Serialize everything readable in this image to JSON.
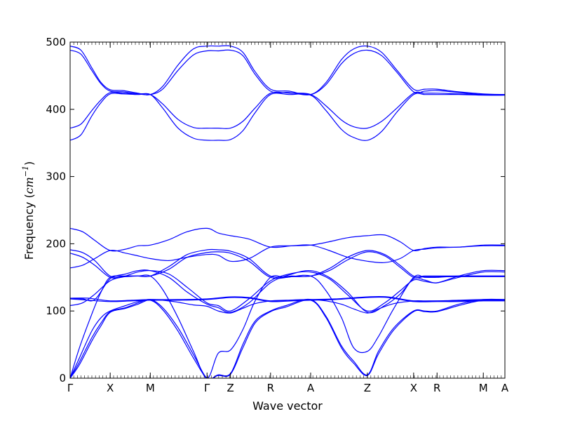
{
  "chart_data": {
    "type": "line",
    "title": "",
    "xlabel": "Wave vector",
    "ylabel_text": "Frequency (",
    "ylabel_math": "cm",
    "ylabel_exp": "−1",
    "ylabel_close": ")",
    "ylim": [
      0,
      500
    ],
    "xlim": [
      0,
      14.1
    ],
    "grid": false,
    "legend": "none",
    "line_color": "#0000ff",
    "yticks": [
      0,
      100,
      200,
      300,
      400,
      500
    ],
    "yticks_labels": [
      "0",
      "100",
      "200",
      "300",
      "400",
      "500"
    ],
    "high_points": [
      {
        "label": "Γ",
        "x": 0
      },
      {
        "label": "X",
        "x": 1.3
      },
      {
        "label": "M",
        "x": 2.6
      },
      {
        "label": "Γ",
        "x": 4.44
      },
      {
        "label": "Z",
        "x": 5.2
      },
      {
        "label": "R",
        "x": 6.5
      },
      {
        "label": "A",
        "x": 7.8
      },
      {
        "label": "Z",
        "x": 9.64
      },
      {
        "label": "X",
        "x": 11.14
      },
      {
        "label": "R",
        "x": 11.9
      },
      {
        "label": "M",
        "x": 13.4
      },
      {
        "label": "A",
        "x": 14.1
      }
    ],
    "series": [
      {
        "x": [
          0,
          0.35,
          0.7,
          1.0,
          1.3,
          1.7,
          2.2,
          2.6,
          3.0,
          3.5,
          4.0,
          4.44,
          4.8,
          5.2,
          5.6,
          6.0,
          6.5,
          7.1,
          7.8,
          8.3,
          8.8,
          9.2,
          9.64,
          10.1,
          10.6,
          11.14,
          11.5,
          11.9,
          12.6,
          13.4,
          14.1
        ],
        "values": [
          494,
          488,
          462,
          440,
          429,
          428,
          424,
          422,
          434,
          466,
          490,
          494,
          494,
          494,
          485,
          456,
          430,
          427,
          422,
          440,
          474,
          490,
          494,
          485,
          458,
          430,
          430,
          430,
          426,
          423,
          422
        ]
      },
      {
        "x": [
          0,
          0.35,
          0.7,
          1.0,
          1.3,
          1.7,
          2.2,
          2.6,
          3.0,
          3.5,
          4.0,
          4.44,
          4.8,
          5.2,
          5.6,
          6.0,
          6.5,
          7.1,
          7.8,
          8.3,
          8.8,
          9.2,
          9.64,
          10.1,
          10.6,
          11.14,
          11.5,
          11.9,
          12.6,
          13.4,
          14.1
        ],
        "values": [
          488,
          482,
          458,
          438,
          427,
          426,
          423,
          422,
          430,
          458,
          481,
          487,
          487,
          488,
          480,
          452,
          427,
          425,
          422,
          437,
          468,
          483,
          488,
          480,
          455,
          426,
          427,
          428,
          425,
          422,
          422
        ]
      },
      {
        "x": [
          0,
          0.35,
          0.7,
          1.0,
          1.3,
          1.7,
          2.2,
          2.6,
          3.0,
          3.5,
          4.0,
          4.44,
          4.8,
          5.2,
          5.6,
          6.0,
          6.5,
          7.1,
          7.8,
          8.3,
          8.8,
          9.2,
          9.64,
          10.1,
          10.6,
          11.14,
          11.5,
          11.9,
          12.6,
          13.4,
          14.1
        ],
        "values": [
          372,
          378,
          398,
          414,
          425,
          424,
          423,
          422,
          408,
          385,
          373,
          372,
          372,
          372,
          382,
          402,
          424,
          424,
          422,
          405,
          384,
          374,
          372,
          382,
          402,
          424,
          424,
          424,
          423,
          422,
          422
        ]
      },
      {
        "x": [
          0,
          0.35,
          0.7,
          1.0,
          1.3,
          1.7,
          2.2,
          2.6,
          3.0,
          3.5,
          4.0,
          4.44,
          4.8,
          5.2,
          5.6,
          6.0,
          6.5,
          7.1,
          7.8,
          8.3,
          8.8,
          9.2,
          9.64,
          10.1,
          10.6,
          11.14,
          11.5,
          11.9,
          12.6,
          13.4,
          14.1
        ],
        "values": [
          354,
          362,
          390,
          410,
          423,
          423,
          422,
          422,
          402,
          372,
          357,
          354,
          354,
          355,
          368,
          395,
          422,
          422,
          421,
          398,
          370,
          358,
          354,
          367,
          396,
          422,
          422,
          422,
          422,
          421,
          421
        ]
      },
      {
        "x": [
          0,
          0.4,
          0.8,
          1.3,
          1.8,
          2.2,
          2.6,
          3.2,
          3.8,
          4.44,
          4.8,
          5.2,
          5.8,
          6.5,
          7.2,
          7.8,
          8.4,
          9.0,
          9.64,
          10.2,
          10.7,
          11.14,
          11.5,
          11.9,
          12.6,
          13.4,
          14.1
        ],
        "values": [
          223,
          218,
          205,
          190,
          192,
          197,
          198,
          206,
          218,
          223,
          216,
          212,
          207,
          195,
          197,
          198,
          203,
          209,
          212,
          213,
          203,
          190,
          193,
          195,
          195,
          198,
          198
        ]
      },
      {
        "x": [
          0,
          0.4,
          0.8,
          1.3,
          1.8,
          2.2,
          2.6,
          3.2,
          3.8,
          4.44,
          4.8,
          5.2,
          5.8,
          6.5,
          7.2,
          7.8,
          8.4,
          9.0,
          9.64,
          10.2,
          10.7,
          11.14,
          11.5,
          11.9,
          12.6,
          13.4,
          14.1
        ],
        "values": [
          191,
          187,
          175,
          152,
          152,
          152,
          152,
          166,
          184,
          191,
          191,
          189,
          178,
          152,
          152,
          152,
          163,
          180,
          190,
          184,
          168,
          152,
          152,
          152,
          152,
          152,
          152
        ]
      },
      {
        "x": [
          0,
          0.4,
          0.8,
          1.3,
          1.8,
          2.2,
          2.6,
          3.2,
          3.8,
          4.44,
          4.8,
          5.2,
          5.8,
          6.5,
          7.2,
          7.8,
          8.4,
          9.0,
          9.64,
          10.2,
          10.7,
          11.14,
          11.5,
          11.9,
          12.6,
          13.4,
          14.1
        ],
        "values": [
          186,
          180,
          168,
          150,
          151,
          152,
          152,
          162,
          180,
          187,
          188,
          186,
          174,
          150,
          151,
          152,
          160,
          176,
          188,
          182,
          165,
          150,
          151,
          151,
          151,
          151,
          151
        ]
      },
      {
        "x": [
          0,
          0.4,
          0.8,
          1.3,
          1.8,
          2.2,
          2.6,
          3.2,
          3.8,
          4.44,
          4.8,
          5.2,
          5.8,
          6.5,
          7.2,
          7.8,
          8.4,
          9.0,
          9.64,
          10.2,
          10.7,
          11.14,
          11.5,
          11.9,
          12.6,
          13.4,
          14.1
        ],
        "values": [
          164,
          168,
          178,
          190,
          186,
          182,
          178,
          175,
          180,
          184,
          183,
          174,
          178,
          195,
          197,
          198,
          190,
          180,
          174,
          172,
          178,
          190,
          192,
          194,
          195,
          197,
          197
        ]
      },
      {
        "x": [
          0,
          0.4,
          0.8,
          1.3,
          1.8,
          2.2,
          2.6,
          3.2,
          3.8,
          4.44,
          4.8,
          5.2,
          5.8,
          6.5,
          7.2,
          7.8,
          8.4,
          9.0,
          9.64,
          10.2,
          10.7,
          11.14,
          11.5,
          11.9,
          12.6,
          13.4,
          14.1
        ],
        "values": [
          119,
          118,
          117,
          148,
          155,
          160,
          160,
          150,
          128,
          110,
          105,
          98,
          112,
          142,
          155,
          160,
          150,
          128,
          98,
          108,
          125,
          148,
          146,
          142,
          152,
          160,
          160
        ]
      },
      {
        "x": [
          0,
          0.4,
          0.8,
          1.3,
          1.8,
          2.2,
          2.6,
          3.2,
          3.8,
          4.44,
          4.8,
          5.2,
          5.8,
          6.5,
          7.2,
          7.8,
          8.4,
          9.0,
          9.64,
          10.2,
          10.7,
          11.14,
          11.5,
          11.9,
          12.6,
          13.4,
          14.1
        ],
        "values": [
          108,
          112,
          125,
          145,
          152,
          158,
          160,
          155,
          135,
          112,
          108,
          100,
          118,
          145,
          156,
          158,
          148,
          124,
          100,
          112,
          130,
          146,
          144,
          142,
          150,
          158,
          158
        ]
      },
      {
        "x": [
          0,
          0.6,
          1.3,
          2.0,
          2.6,
          3.5,
          4.44,
          5.2,
          5.8,
          6.5,
          7.2,
          7.8,
          8.6,
          9.64,
          10.3,
          11.14,
          11.9,
          12.6,
          13.4,
          14.1
        ],
        "values": [
          119,
          119,
          115,
          116,
          117,
          117,
          118,
          121,
          120,
          115,
          116,
          117,
          118,
          121,
          121,
          115,
          115,
          115,
          116,
          116
        ]
      },
      {
        "x": [
          0,
          0.6,
          1.3,
          2.0,
          2.6,
          3.5,
          4.44,
          5.2,
          5.8,
          6.5,
          7.2,
          7.8,
          8.6,
          9.64,
          10.3,
          11.14,
          11.9,
          12.6,
          13.4,
          14.1
        ],
        "values": [
          118,
          116,
          114,
          115,
          116,
          116,
          117,
          120,
          119,
          114,
          115,
          116,
          117,
          120,
          120,
          114,
          114,
          114,
          115,
          115
        ]
      },
      {
        "x": [
          0,
          0.3,
          0.7,
          1.0,
          1.3,
          1.8,
          2.2,
          2.6,
          3.0,
          3.5,
          4.0,
          4.44,
          4.8,
          5.2,
          5.6,
          6.0,
          6.5,
          7.0,
          7.8,
          8.3,
          8.8,
          9.2,
          9.64,
          10.0,
          10.5,
          11.14,
          11.5,
          11.9,
          12.6,
          13.4,
          14.1
        ],
        "values": [
          0,
          45,
          95,
          128,
          150,
          152,
          152,
          152,
          132,
          90,
          40,
          0,
          37,
          42,
          72,
          115,
          150,
          150,
          152,
          130,
          90,
          45,
          40,
          62,
          104,
          150,
          150,
          150,
          152,
          152,
          152
        ]
      },
      {
        "x": [
          0,
          0.3,
          0.7,
          1.0,
          1.3,
          1.8,
          2.2,
          2.6,
          3.0,
          3.5,
          4.0,
          4.44,
          4.8,
          5.2,
          5.6,
          6.0,
          6.5,
          7.0,
          7.8,
          8.3,
          8.8,
          9.2,
          9.64,
          10.0,
          10.5,
          11.14,
          11.5,
          11.9,
          12.6,
          13.4,
          14.1
        ],
        "values": [
          0,
          30,
          70,
          90,
          100,
          108,
          114,
          117,
          116,
          113,
          109,
          107,
          100,
          97,
          104,
          111,
          115,
          116,
          117,
          115,
          110,
          103,
          97,
          103,
          111,
          115,
          115,
          115,
          116,
          117,
          117
        ]
      },
      {
        "x": [
          0,
          0.3,
          0.7,
          1.0,
          1.3,
          1.8,
          2.2,
          2.6,
          3.0,
          3.5,
          4.0,
          4.44,
          4.8,
          5.2,
          5.6,
          6.0,
          6.5,
          7.0,
          7.8,
          8.3,
          8.8,
          9.2,
          9.64,
          10.0,
          10.5,
          11.14,
          11.5,
          11.9,
          12.6,
          13.4,
          14.1
        ],
        "values": [
          0,
          24,
          60,
          82,
          99,
          105,
          112,
          117,
          105,
          75,
          35,
          0,
          5,
          7,
          50,
          85,
          100,
          108,
          117,
          92,
          48,
          25,
          5,
          40,
          75,
          100,
          100,
          100,
          110,
          117,
          117
        ]
      },
      {
        "x": [
          0,
          0.3,
          0.7,
          1.0,
          1.3,
          1.8,
          2.2,
          2.6,
          3.0,
          3.5,
          4.0,
          4.44,
          4.8,
          5.2,
          5.6,
          6.0,
          6.5,
          7.0,
          7.8,
          8.3,
          8.8,
          9.2,
          9.64,
          10.0,
          10.5,
          11.14,
          11.5,
          11.9,
          12.6,
          13.4,
          14.1
        ],
        "values": [
          0,
          20,
          55,
          78,
          98,
          104,
          110,
          116,
          102,
          70,
          30,
          0,
          4,
          6,
          45,
          82,
          99,
          106,
          116,
          90,
          45,
          22,
          4,
          36,
          72,
          99,
          99,
          99,
          108,
          116,
          116
        ]
      }
    ]
  }
}
